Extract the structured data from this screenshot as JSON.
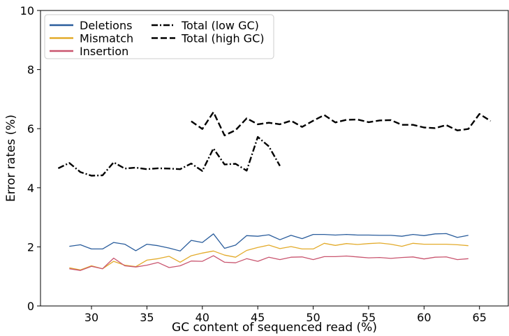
{
  "chart_data": {
    "type": "line",
    "title": "",
    "xlabel": "GC content of sequenced read (%)",
    "ylabel": "Error rates (%)",
    "xlim": [
      25.4,
      67.6
    ],
    "ylim": [
      0,
      10
    ],
    "xticks": [
      30,
      35,
      40,
      45,
      50,
      55,
      60,
      65
    ],
    "yticks": [
      0,
      2,
      4,
      6,
      8,
      10
    ],
    "grid": false,
    "legend_position": "top-left",
    "legend": {
      "col1": [
        "Deletions",
        "Mismatch",
        "Insertion"
      ],
      "col2": [
        "Total (low GC)",
        "Total (high GC)"
      ]
    },
    "series": [
      {
        "name": "Deletions",
        "color": "#2a5d9c",
        "dash": "solid",
        "x": [
          28,
          29,
          30,
          31,
          32,
          33,
          34,
          35,
          36,
          37,
          38,
          39,
          40,
          41,
          42,
          43,
          44,
          45,
          46,
          47,
          48,
          49,
          50,
          51,
          52,
          53,
          54,
          55,
          56,
          57,
          58,
          59,
          60,
          61,
          62,
          63,
          64
        ],
        "y": [
          2.02,
          2.07,
          1.93,
          1.93,
          2.15,
          2.09,
          1.87,
          2.09,
          2.04,
          1.96,
          1.86,
          2.22,
          2.15,
          2.44,
          1.95,
          2.06,
          2.38,
          2.36,
          2.41,
          2.24,
          2.39,
          2.28,
          2.42,
          2.42,
          2.4,
          2.42,
          2.4,
          2.4,
          2.39,
          2.39,
          2.36,
          2.42,
          2.38,
          2.44,
          2.45,
          2.32,
          2.39
        ]
      },
      {
        "name": "Mismatch",
        "color": "#e3ab2b",
        "dash": "solid",
        "x": [
          28,
          29,
          30,
          31,
          32,
          33,
          34,
          35,
          36,
          37,
          38,
          39,
          40,
          41,
          42,
          43,
          44,
          45,
          46,
          47,
          48,
          49,
          50,
          51,
          52,
          53,
          54,
          55,
          56,
          57,
          58,
          59,
          60,
          61,
          62,
          63,
          64
        ],
        "y": [
          1.29,
          1.22,
          1.36,
          1.26,
          1.51,
          1.38,
          1.33,
          1.55,
          1.6,
          1.68,
          1.48,
          1.7,
          1.79,
          1.86,
          1.72,
          1.65,
          1.88,
          1.98,
          2.06,
          1.94,
          2.01,
          1.93,
          1.93,
          2.12,
          2.05,
          2.11,
          2.08,
          2.11,
          2.13,
          2.09,
          2.02,
          2.12,
          2.09,
          2.09,
          2.09,
          2.07,
          2.04
        ]
      },
      {
        "name": "Insertion",
        "color": "#c9556f",
        "dash": "solid",
        "x": [
          28,
          29,
          30,
          31,
          32,
          33,
          34,
          35,
          36,
          37,
          38,
          39,
          40,
          41,
          42,
          43,
          44,
          45,
          46,
          47,
          48,
          49,
          50,
          51,
          52,
          53,
          54,
          55,
          56,
          57,
          58,
          59,
          60,
          61,
          62,
          63,
          64
        ],
        "y": [
          1.26,
          1.2,
          1.34,
          1.26,
          1.62,
          1.36,
          1.32,
          1.38,
          1.47,
          1.3,
          1.36,
          1.52,
          1.51,
          1.7,
          1.48,
          1.46,
          1.6,
          1.51,
          1.65,
          1.57,
          1.65,
          1.66,
          1.57,
          1.67,
          1.67,
          1.69,
          1.66,
          1.63,
          1.64,
          1.61,
          1.64,
          1.66,
          1.59,
          1.65,
          1.66,
          1.57,
          1.6
        ]
      },
      {
        "name": "Total (low GC)",
        "color": "#000000",
        "dash": "dashdot",
        "x": [
          27,
          28,
          29,
          30,
          31,
          32,
          33,
          34,
          35,
          36,
          37,
          38,
          39,
          40,
          41,
          42,
          43,
          44,
          45,
          46,
          47
        ],
        "y": [
          4.66,
          4.84,
          4.53,
          4.41,
          4.42,
          4.86,
          4.65,
          4.68,
          4.63,
          4.66,
          4.65,
          4.63,
          4.82,
          4.57,
          5.33,
          4.79,
          4.81,
          4.58,
          5.72,
          5.4,
          4.74
        ]
      },
      {
        "name": "Total (high GC)",
        "color": "#000000",
        "dash": "dashed",
        "x": [
          39,
          40,
          41,
          42,
          43,
          44,
          45,
          46,
          47,
          48,
          49,
          50,
          51,
          52,
          53,
          54,
          55,
          56,
          57,
          58,
          59,
          60,
          61,
          62,
          63,
          64,
          65,
          66
        ],
        "y": [
          6.25,
          5.99,
          6.56,
          5.77,
          5.95,
          6.35,
          6.15,
          6.2,
          6.15,
          6.27,
          6.06,
          6.27,
          6.46,
          6.21,
          6.3,
          6.31,
          6.22,
          6.28,
          6.29,
          6.13,
          6.13,
          6.04,
          6.02,
          6.12,
          5.94,
          5.99,
          6.5,
          6.26
        ]
      }
    ]
  }
}
